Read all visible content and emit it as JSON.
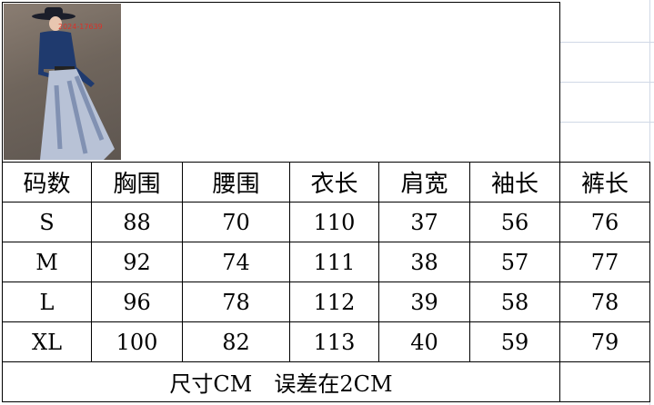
{
  "photo": {
    "watermark": "2024-17639",
    "description_colors": {
      "top": "#1f3a6e",
      "skirt": "#b8c2d6"
    }
  },
  "table": {
    "headers": [
      "码数",
      "胸围",
      "腰围",
      "衣长",
      "肩宽",
      "袖长",
      "裤长"
    ],
    "rows": [
      [
        "S",
        "88",
        "70",
        "110",
        "37",
        "56",
        "76"
      ],
      [
        "M",
        "92",
        "74",
        "111",
        "38",
        "57",
        "77"
      ],
      [
        "L",
        "96",
        "78",
        "112",
        "39",
        "58",
        "78"
      ],
      [
        "XL",
        "100",
        "82",
        "113",
        "40",
        "59",
        "79"
      ]
    ],
    "footer": "尺寸CM　误差在2CM"
  }
}
